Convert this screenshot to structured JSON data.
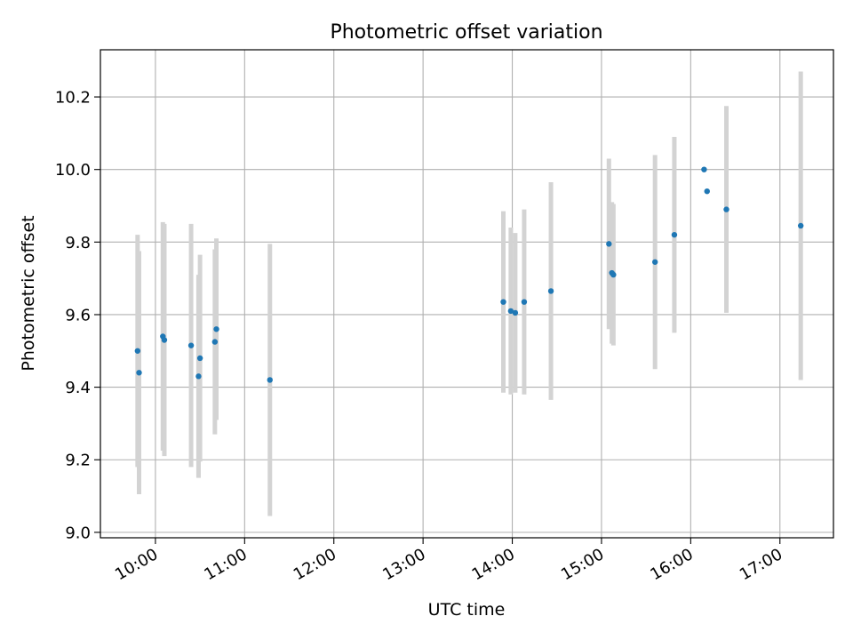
{
  "chart_data": {
    "type": "scatter",
    "title": "Photometric offset variation",
    "xlabel": "UTC time",
    "ylabel": "Photometric offset",
    "xlim": [
      "09:23",
      "17:36"
    ],
    "ylim": [
      8.985,
      10.33
    ],
    "grid": true,
    "x_ticks": [
      "10:00",
      "11:00",
      "12:00",
      "13:00",
      "14:00",
      "15:00",
      "16:00",
      "17:00"
    ],
    "y_ticks": [
      "9.0",
      "9.2",
      "9.4",
      "9.6",
      "9.8",
      "10.0",
      "10.2"
    ],
    "colors": {
      "points": "#1f77b4",
      "errorbars": "#d3d3d3",
      "grid": "#b0b0b0"
    },
    "series": [
      {
        "points": [
          {
            "x": "09:48",
            "y": 9.5,
            "err": 0.32
          },
          {
            "x": "09:49",
            "y": 9.44,
            "err": 0.335
          },
          {
            "x": "10:05",
            "y": 9.54,
            "err": 0.315
          },
          {
            "x": "10:06",
            "y": 9.53,
            "err": 0.32
          },
          {
            "x": "10:24",
            "y": 9.515,
            "err": 0.335
          },
          {
            "x": "10:29",
            "y": 9.43,
            "err": 0.28
          },
          {
            "x": "10:30",
            "y": 9.48,
            "err": 0.285
          },
          {
            "x": "10:40",
            "y": 9.525,
            "err": 0.255
          },
          {
            "x": "10:41",
            "y": 9.56,
            "err": 0.25
          },
          {
            "x": "11:17",
            "y": 9.42,
            "err": 0.375
          },
          {
            "x": "13:54",
            "y": 9.635,
            "err": 0.25
          },
          {
            "x": "13:59",
            "y": 9.61,
            "err": 0.23
          },
          {
            "x": "14:02",
            "y": 9.605,
            "err": 0.22
          },
          {
            "x": "14:08",
            "y": 9.635,
            "err": 0.255
          },
          {
            "x": "14:26",
            "y": 9.665,
            "err": 0.3
          },
          {
            "x": "15:05",
            "y": 9.795,
            "err": 0.235
          },
          {
            "x": "15:07",
            "y": 9.715,
            "err": 0.195
          },
          {
            "x": "15:08",
            "y": 9.71,
            "err": 0.195
          },
          {
            "x": "15:36",
            "y": 9.745,
            "err": 0.295
          },
          {
            "x": "15:49",
            "y": 9.82,
            "err": 0.27
          },
          {
            "x": "16:09",
            "y": 10.0,
            "err": 0.0
          },
          {
            "x": "16:11",
            "y": 9.94,
            "err": 0.0
          },
          {
            "x": "16:24",
            "y": 9.89,
            "err": 0.285
          },
          {
            "x": "17:14",
            "y": 9.845,
            "err": 0.425
          }
        ]
      }
    ]
  }
}
